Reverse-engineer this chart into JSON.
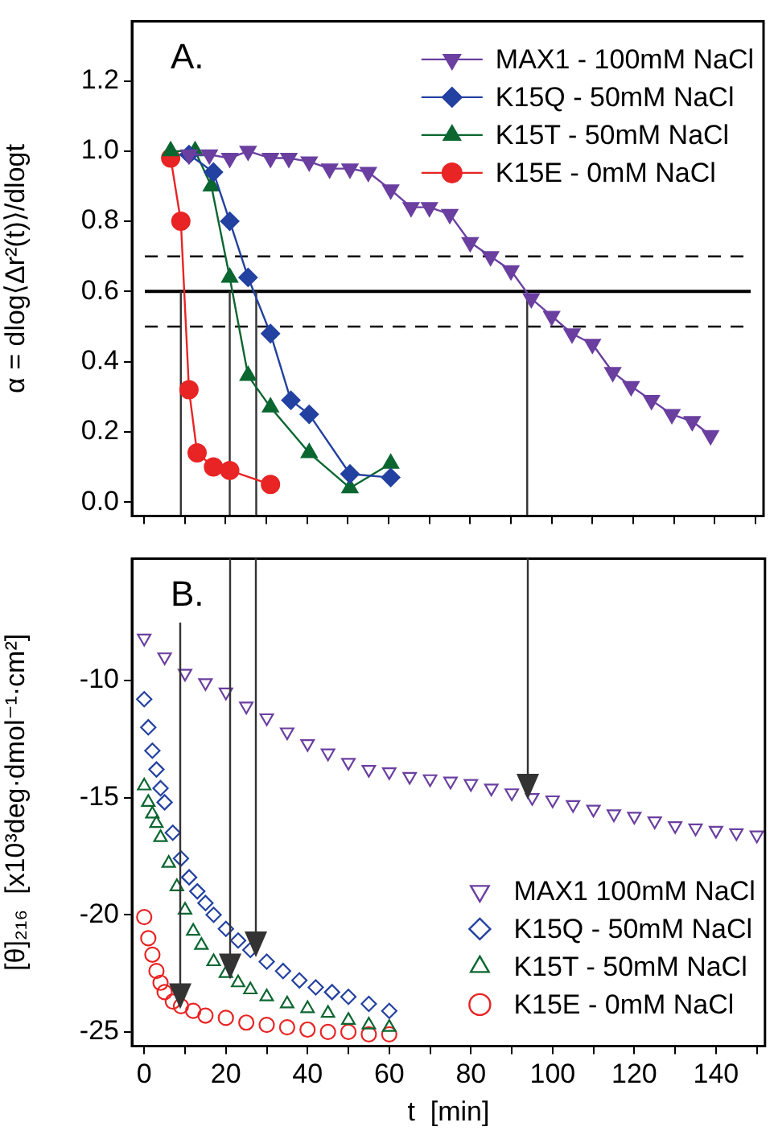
{
  "chart_data": [
    {
      "type": "line",
      "annotations": [
        "A."
      ],
      "ylabel": "α = dlog⟨Δr²(t)⟩/dlogt",
      "xlim": [
        -3,
        152
      ],
      "xticks": [
        {
          "value": 0,
          "label": null
        },
        {
          "value": 10,
          "label": null
        },
        {
          "value": 20,
          "label": null
        },
        {
          "value": 30,
          "label": null
        },
        {
          "value": 40,
          "label": null
        },
        {
          "value": 50,
          "label": null
        },
        {
          "value": 60,
          "label": null
        },
        {
          "value": 70,
          "label": null
        },
        {
          "value": 80,
          "label": null
        },
        {
          "value": 90,
          "label": null
        },
        {
          "value": 100,
          "label": null
        },
        {
          "value": 110,
          "label": null
        },
        {
          "value": 120,
          "label": null
        },
        {
          "value": 130,
          "label": null
        },
        {
          "value": 140,
          "label": null
        },
        {
          "value": 150,
          "label": null
        }
      ],
      "ylim": [
        -0.04,
        1.37
      ],
      "yticks": [
        {
          "value": 0,
          "label": "0.0"
        },
        {
          "value": 0.2,
          "label": "0.2"
        },
        {
          "value": 0.4,
          "label": "0.4"
        },
        {
          "value": 0.6,
          "label": "0.6"
        },
        {
          "value": 0.8,
          "label": "0.8"
        },
        {
          "value": 1,
          "label": "1.0"
        },
        {
          "value": 1.2,
          "label": "1.2"
        }
      ],
      "tick_labels": "y",
      "grid": false,
      "legend": "top right",
      "series": [
        {
          "name": "MAX1 - 100mM NaCl",
          "color": "#6a3fa0",
          "marker": "triangle-down",
          "x": [
            11,
            16,
            21,
            25.5,
            31,
            35.5,
            40.5,
            45.5,
            50.5,
            55,
            60.5,
            65.5,
            70,
            75,
            80,
            85,
            90,
            95,
            100,
            105,
            110,
            115,
            119.5,
            124.5,
            129.5,
            134.5,
            139
          ],
          "values": [
            0.99,
            0.99,
            0.98,
            1.0,
            0.98,
            0.98,
            0.97,
            0.95,
            0.95,
            0.94,
            0.89,
            0.84,
            0.84,
            0.82,
            0.74,
            0.7,
            0.66,
            0.58,
            0.53,
            0.48,
            0.45,
            0.37,
            0.33,
            0.29,
            0.25,
            0.23,
            0.19
          ]
        },
        {
          "name": "K15Q - 50mM NaCl",
          "color": "#2341a0",
          "marker": "diamond",
          "x": [
            11,
            17,
            21,
            25.5,
            31,
            36,
            40.5,
            50.5,
            60.5
          ],
          "values": [
            0.99,
            0.94,
            0.8,
            0.64,
            0.48,
            0.29,
            0.25,
            0.08,
            0.07
          ]
        },
        {
          "name": "K15T - 50mM NaCl",
          "color": "#0b6630",
          "marker": "triangle",
          "x": [
            6.5,
            12.5,
            16.5,
            21,
            25.5,
            31,
            40.5,
            50.5,
            60.5
          ],
          "values": [
            1.0,
            1.0,
            0.9,
            0.64,
            0.36,
            0.27,
            0.14,
            0.04,
            0.11
          ]
        },
        {
          "name": "K15E - 0mM NaCl",
          "color": "#e82424",
          "marker": "circle",
          "x": [
            6.5,
            9,
            11,
            13,
            17,
            21,
            31
          ],
          "values": [
            0.98,
            0.8,
            0.32,
            0.14,
            0.1,
            0.09,
            0.05
          ]
        }
      ],
      "ref_lines": [
        {
          "axis": "y",
          "value": 0.7,
          "line_style": "dashed",
          "color": "#000000"
        },
        {
          "axis": "y",
          "value": 0.6,
          "line_style": "solid",
          "color": "#000000"
        },
        {
          "axis": "y",
          "value": 0.5,
          "line_style": "dashed",
          "color": "#000000"
        },
        {
          "axis": "x",
          "value": 94,
          "color": "#333333"
        },
        {
          "axis": "x",
          "value": 27.5,
          "color": "#333333"
        },
        {
          "axis": "x",
          "value": 21,
          "color": "#333333"
        },
        {
          "axis": "x",
          "value": 9,
          "color": "#333333"
        }
      ]
    },
    {
      "type": "scatter",
      "annotations": [
        "B."
      ],
      "xlabel": "t  [min]",
      "ylabel": "[θ]₂₁₆  [x10³deg·dmol⁻¹·cm²]",
      "xlim": [
        -3,
        152
      ],
      "xticks": [
        0,
        {
          "value": 10,
          "label": null
        },
        20,
        {
          "value": 30,
          "label": null
        },
        40,
        {
          "value": 50,
          "label": null
        },
        60,
        {
          "value": 70,
          "label": null
        },
        80,
        {
          "value": 90,
          "label": null
        },
        100,
        {
          "value": 110,
          "label": null
        },
        120,
        {
          "value": 130,
          "label": null
        },
        140,
        {
          "value": 150,
          "label": null
        }
      ],
      "ylim": [
        -25.6,
        -4.8
      ],
      "yticks": [
        -25,
        -20,
        -15,
        -10
      ],
      "grid": false,
      "legend": "bottom right",
      "series": [
        {
          "name": "MAX1 100mM NaCl",
          "color": "#6a3fa0",
          "marker": "triangle-down",
          "x": [
            0,
            5,
            10,
            15,
            20,
            25,
            30,
            35,
            40,
            45,
            50,
            55,
            60,
            65,
            70,
            75,
            80,
            85,
            90,
            95,
            100,
            105,
            110,
            115,
            120,
            125,
            130,
            135,
            140,
            145,
            150
          ],
          "values": [
            -8.2,
            -9.0,
            -9.7,
            -10.1,
            -10.5,
            -11.1,
            -11.6,
            -12.2,
            -12.7,
            -13.1,
            -13.5,
            -13.8,
            -13.9,
            -14.1,
            -14.2,
            -14.3,
            -14.4,
            -14.6,
            -14.8,
            -15.0,
            -15.1,
            -15.3,
            -15.5,
            -15.7,
            -15.8,
            -16.0,
            -16.2,
            -16.3,
            -16.4,
            -16.5,
            -16.6
          ]
        },
        {
          "name": "K15Q - 50mM NaCl",
          "color": "#2341a0",
          "marker": "diamond",
          "x": [
            0,
            1,
            2,
            3,
            4,
            5,
            7,
            9,
            11,
            13,
            15,
            17,
            20,
            23,
            26,
            30,
            34,
            38,
            42,
            46,
            50,
            55,
            60
          ],
          "values": [
            -10.8,
            -12.0,
            -13.0,
            -13.8,
            -14.6,
            -15.2,
            -16.5,
            -17.6,
            -18.4,
            -19.0,
            -19.5,
            -20.0,
            -20.6,
            -21.1,
            -21.5,
            -22.0,
            -22.4,
            -22.8,
            -23.1,
            -23.3,
            -23.5,
            -23.8,
            -24.1
          ]
        },
        {
          "name": "K15T - 50mM NaCl",
          "color": "#0b6630",
          "marker": "triangle",
          "x": [
            0,
            1,
            2,
            3,
            4,
            6,
            8,
            10,
            12,
            14,
            17,
            20,
            23,
            26,
            30,
            35,
            40,
            45,
            50,
            55,
            60
          ],
          "values": [
            -14.5,
            -15.2,
            -15.7,
            -16.1,
            -16.7,
            -17.8,
            -18.8,
            -19.8,
            -20.7,
            -21.3,
            -22.0,
            -22.5,
            -22.9,
            -23.2,
            -23.5,
            -23.8,
            -24.0,
            -24.2,
            -24.5,
            -24.7,
            -24.8
          ]
        },
        {
          "name": "K15E - 0mM NaCl",
          "color": "#e82424",
          "marker": "circle",
          "x": [
            0,
            1,
            2,
            3,
            4,
            5,
            7,
            9,
            12,
            15,
            20,
            25,
            30,
            35,
            40,
            45,
            50,
            55,
            60
          ],
          "values": [
            -20.1,
            -21.0,
            -21.7,
            -22.4,
            -22.9,
            -23.3,
            -23.7,
            -23.9,
            -24.1,
            -24.3,
            -24.4,
            -24.6,
            -24.7,
            -24.8,
            -24.9,
            -25.0,
            -25.0,
            -25.1,
            -25.1
          ]
        }
      ],
      "ref_lines": [
        {
          "axis": "x",
          "value": 94,
          "color": "#333333"
        },
        {
          "axis": "x",
          "value": 27.5,
          "color": "#333333"
        },
        {
          "axis": "x",
          "value": 21,
          "color": "#333333"
        },
        {
          "axis": "x",
          "value": 9,
          "color": "#333333"
        }
      ]
    }
  ]
}
